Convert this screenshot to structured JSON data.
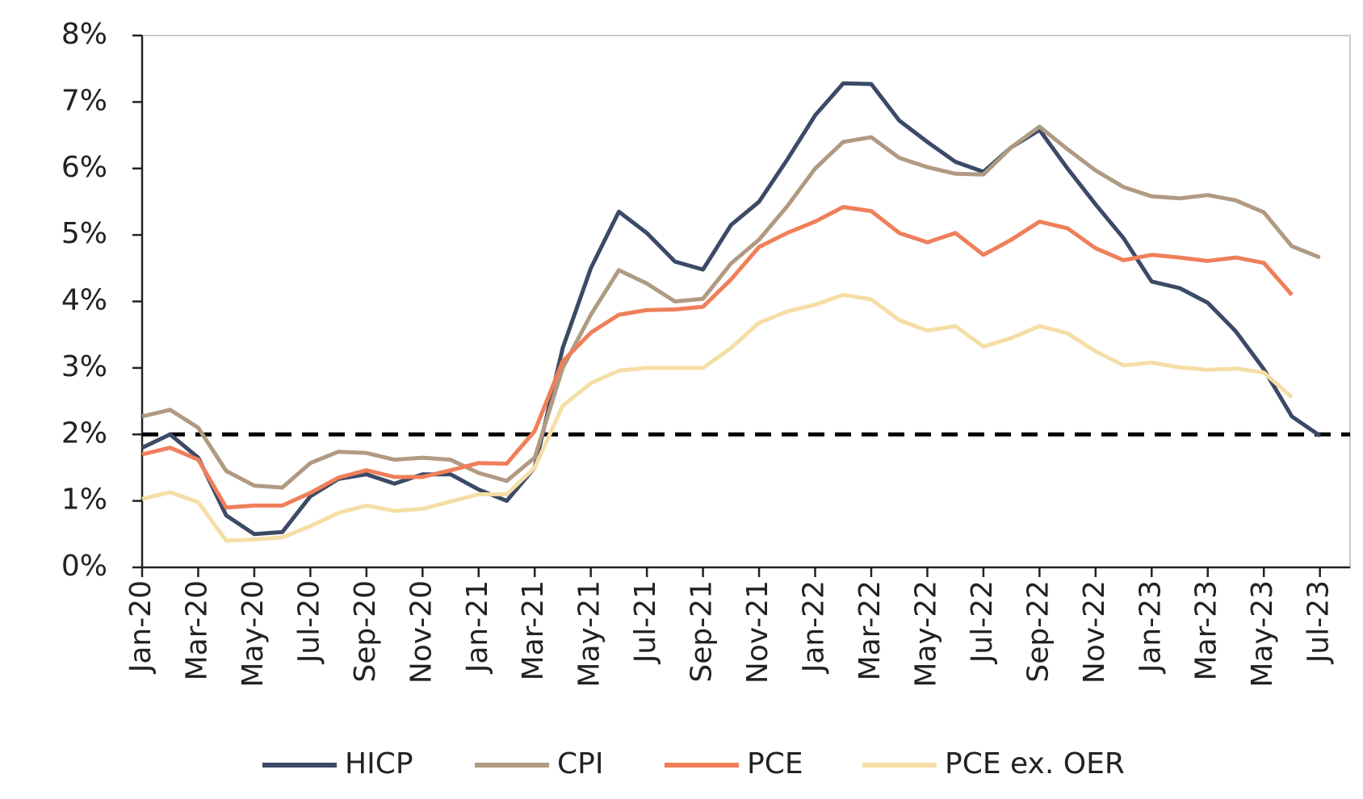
{
  "chart_data": {
    "type": "line",
    "categories": [
      "Jan-20",
      null,
      "Mar-20",
      null,
      "May-20",
      null,
      "Jul-20",
      null,
      "Sep-20",
      null,
      "Nov-20",
      null,
      "Jan-21",
      null,
      "Mar-21",
      null,
      "May-21",
      null,
      "Jul-21",
      null,
      "Sep-21",
      null,
      "Nov-21",
      null,
      "Jan-22",
      null,
      "Mar-22",
      null,
      "May-22",
      null,
      "Jul-22",
      null,
      "Sep-22",
      null,
      "Nov-22",
      null,
      "Jan-23",
      null,
      "Mar-23",
      null,
      "May-23",
      null,
      "Jul-23"
    ],
    "series": [
      {
        "name": "HICP",
        "color": "#3b4a66",
        "values": [
          1.8,
          2.0,
          1.65,
          0.78,
          0.5,
          0.53,
          1.07,
          1.33,
          1.4,
          1.26,
          1.4,
          1.4,
          1.17,
          1.0,
          1.5,
          3.3,
          4.5,
          5.35,
          5.03,
          4.6,
          4.48,
          5.15,
          5.5,
          6.13,
          6.8,
          7.28,
          7.27,
          6.72,
          6.4,
          6.1,
          5.95,
          6.32,
          6.58,
          6.0,
          5.46,
          4.95,
          4.3,
          4.2,
          3.98,
          3.55,
          2.98,
          2.27,
          1.98
        ]
      },
      {
        "name": "CPI",
        "color": "#b09a82",
        "values": [
          2.27,
          2.37,
          2.1,
          1.45,
          1.23,
          1.2,
          1.57,
          1.74,
          1.72,
          1.62,
          1.65,
          1.62,
          1.42,
          1.3,
          1.65,
          3.0,
          3.8,
          4.47,
          4.27,
          4.0,
          4.04,
          4.57,
          4.93,
          5.43,
          6.0,
          6.4,
          6.47,
          6.16,
          6.02,
          5.92,
          5.91,
          6.32,
          6.63,
          6.29,
          5.97,
          5.72,
          5.58,
          5.55,
          5.6,
          5.52,
          5.34,
          4.83,
          4.66
        ]
      },
      {
        "name": "PCE",
        "color": "#ef7f5a",
        "values": [
          1.7,
          1.8,
          1.62,
          0.9,
          0.93,
          0.93,
          1.12,
          1.35,
          1.46,
          1.36,
          1.36,
          1.46,
          1.57,
          1.56,
          2.05,
          3.1,
          3.53,
          3.8,
          3.87,
          3.88,
          3.92,
          4.33,
          4.82,
          5.03,
          5.2,
          5.42,
          5.36,
          5.03,
          4.89,
          5.03,
          4.7,
          4.93,
          5.2,
          5.1,
          4.8,
          4.62,
          4.7,
          4.66,
          4.61,
          4.66,
          4.58,
          4.1,
          null
        ]
      },
      {
        "name": "PCE ex. OER",
        "color": "#f5dea6",
        "values": [
          1.03,
          1.13,
          0.98,
          0.4,
          0.42,
          0.45,
          0.62,
          0.82,
          0.93,
          0.85,
          0.88,
          0.99,
          1.1,
          1.1,
          1.5,
          2.43,
          2.77,
          2.96,
          3.0,
          3.0,
          3.0,
          3.3,
          3.68,
          3.85,
          3.95,
          4.1,
          4.03,
          3.72,
          3.56,
          3.63,
          3.32,
          3.45,
          3.63,
          3.52,
          3.25,
          3.04,
          3.08,
          3.01,
          2.97,
          2.99,
          2.93,
          2.56,
          null
        ]
      }
    ],
    "ylim": [
      0,
      8
    ],
    "yticks": [
      {
        "value": 0,
        "label": "0%"
      },
      {
        "value": 1,
        "label": "1%"
      },
      {
        "value": 2,
        "label": "2%"
      },
      {
        "value": 3,
        "label": "3%"
      },
      {
        "value": 4,
        "label": "4%"
      },
      {
        "value": 5,
        "label": "5%"
      },
      {
        "value": 6,
        "label": "6%"
      },
      {
        "value": 7,
        "label": "7%"
      },
      {
        "value": 8,
        "label": "8%"
      }
    ],
    "reference_line": {
      "value": 2,
      "color": "#000000"
    },
    "legend": "bottom"
  }
}
